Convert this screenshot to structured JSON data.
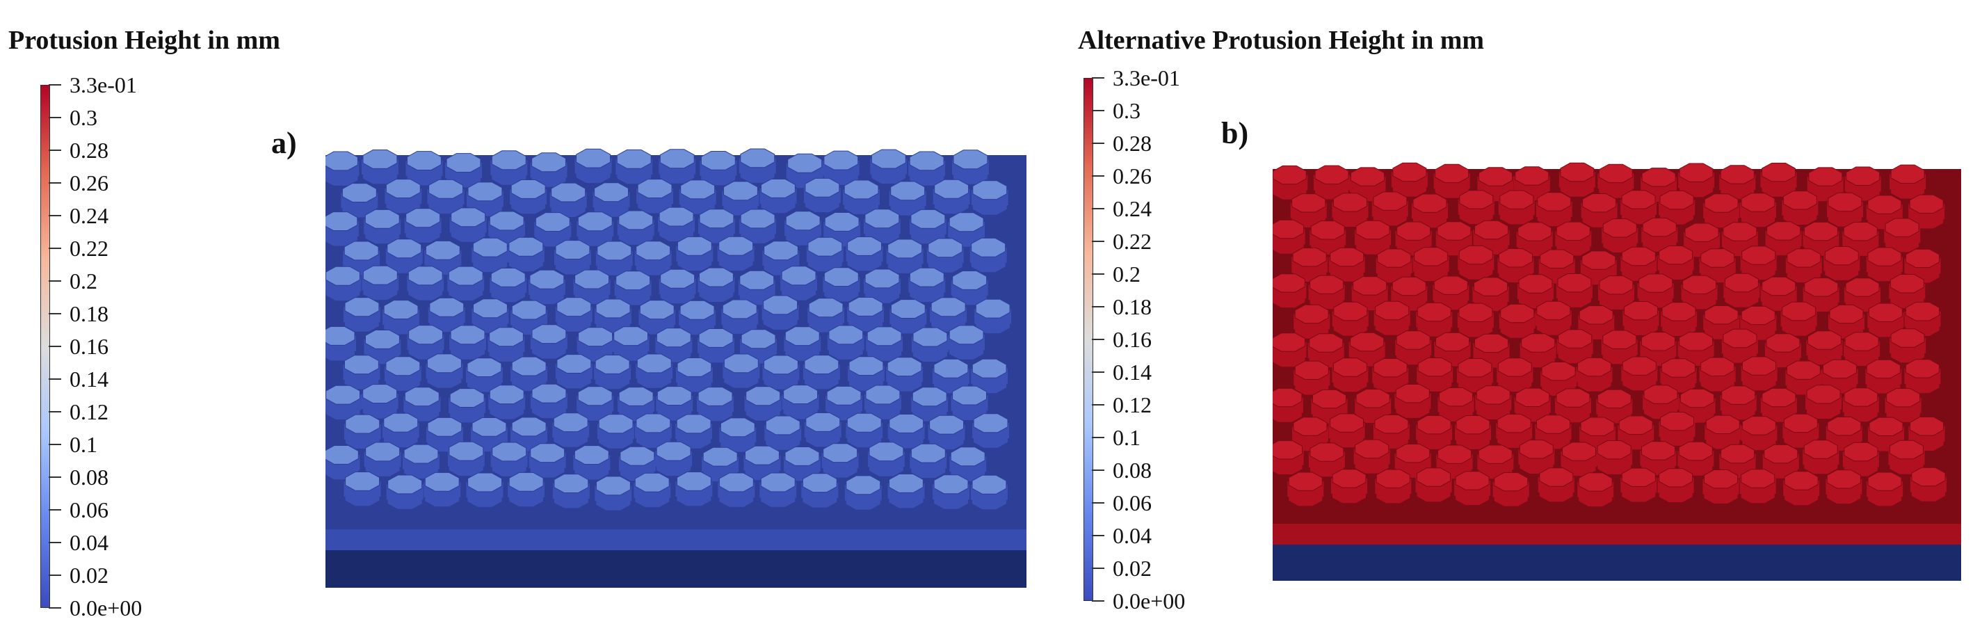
{
  "panels": [
    {
      "id": "a",
      "legend_title": "Protusion Height in mm",
      "panel_label": "a)",
      "colormap": [
        "#3b4cc0",
        "#6688ee",
        "#aac7fd",
        "#dddddd",
        "#f7b89c",
        "#e36a53",
        "#b40426"
      ],
      "ticks": [
        "3.3e-01",
        "0.3",
        "0.28",
        "0.26",
        "0.24",
        "0.22",
        "0.2",
        "0.18",
        "0.16",
        "0.14",
        "0.12",
        "0.1",
        "0.08",
        "0.06",
        "0.04",
        "0.02",
        "0.0e+00"
      ],
      "render_colors": {
        "surface": "#3b51b6",
        "shadow": "#2e3f98",
        "top": "#6f8fd8",
        "base": "#1b2a6b"
      }
    },
    {
      "id": "b",
      "legend_title": "Alternative Protusion Height in mm",
      "panel_label": "b)",
      "colormap": [
        "#3b4cc0",
        "#6688ee",
        "#aac7fd",
        "#dddddd",
        "#f7b89c",
        "#e36a53",
        "#b40426"
      ],
      "ticks": [
        "3.3e-01",
        "0.3",
        "0.28",
        "0.26",
        "0.24",
        "0.22",
        "0.2",
        "0.18",
        "0.16",
        "0.14",
        "0.12",
        "0.1",
        "0.08",
        "0.06",
        "0.04",
        "0.02",
        "0.0e+00"
      ],
      "render_colors": {
        "surface": "#b0101f",
        "shadow": "#7d0b16",
        "top": "#c41a2a",
        "base": "#1b2a6b"
      }
    }
  ]
}
